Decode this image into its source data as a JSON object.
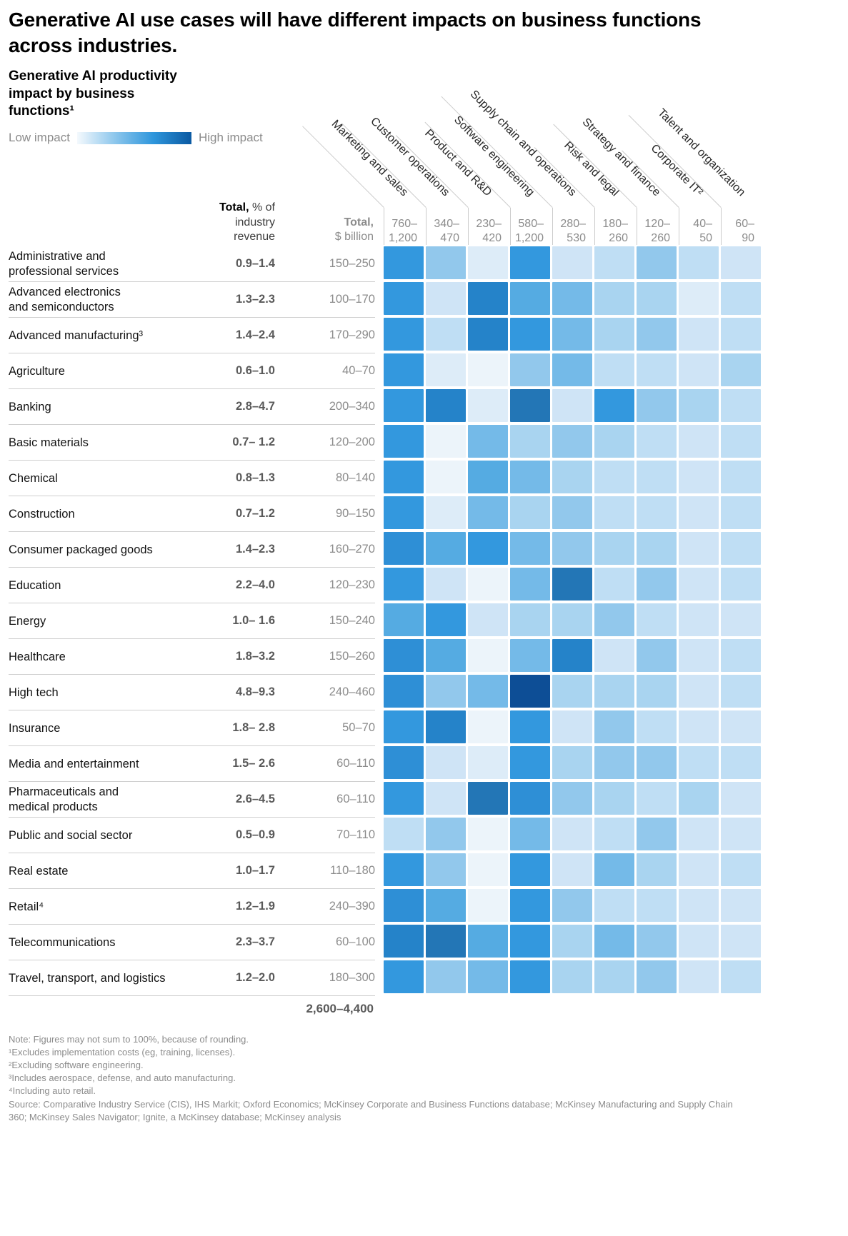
{
  "title": "Generative AI use cases will have different impacts on business functions across industries.",
  "chart": {
    "subtitle": "Generative AI productivity impact by business functions¹",
    "legend": {
      "low": "Low impact",
      "high": "High impact",
      "gradient": [
        "#f4f9fd",
        "#8cc6ec",
        "#2e96dc",
        "#0b59a2"
      ]
    },
    "headers": {
      "pct_bold": "Total,",
      "pct_rest": " % of industry revenue",
      "usd_bold": "Total,",
      "usd_rest": "$ billion"
    }
  },
  "chart_data": {
    "type": "heatmap",
    "columns": [
      "Marketing and sales",
      "Customer operations",
      "Product and R&D",
      "Software engineering",
      "Supply chain and operations",
      "Risk and legal",
      "Strategy and finance",
      "Corporate IT²",
      "Talent and organization"
    ],
    "column_totals_usd_billion": [
      "760–\n1,200",
      "340–\n470",
      "230–\n420",
      "580–\n1,200",
      "280–\n530",
      "180–\n260",
      "120–\n260",
      "40–\n50",
      "60–\n90"
    ],
    "palette_low_to_high": [
      "#ecf4fa",
      "#ddecf8",
      "#cfe4f6",
      "#bfdef4",
      "#a9d4f0",
      "#92c8ec",
      "#74bae8",
      "#55abe2",
      "#3398de",
      "#2e8fd6",
      "#2583c9",
      "#2376b6",
      "#0d4e96"
    ],
    "rows": [
      {
        "industry": "Administrative and\nprofessional services",
        "pct_of_industry_revenue": "0.9–1.4",
        "total_usd_billion": "150–250",
        "impact_levels": [
          8,
          5,
          1,
          8,
          2,
          3,
          5,
          3,
          2
        ]
      },
      {
        "industry": "Advanced electronics\nand semiconductors",
        "pct_of_industry_revenue": "1.3–2.3",
        "total_usd_billion": "100–170",
        "impact_levels": [
          8,
          2,
          10,
          7,
          6,
          4,
          4,
          1,
          3
        ]
      },
      {
        "industry": "Advanced manufacturing³",
        "pct_of_industry_revenue": "1.4–2.4",
        "total_usd_billion": "170–290",
        "impact_levels": [
          8,
          3,
          10,
          8,
          6,
          4,
          5,
          2,
          3
        ]
      },
      {
        "industry": "Agriculture",
        "pct_of_industry_revenue": "0.6–1.0",
        "total_usd_billion": "40–70",
        "impact_levels": [
          8,
          1,
          0,
          5,
          6,
          3,
          3,
          2,
          4
        ]
      },
      {
        "industry": "Banking",
        "pct_of_industry_revenue": "2.8–4.7",
        "total_usd_billion": "200–340",
        "impact_levels": [
          8,
          10,
          1,
          11,
          2,
          8,
          5,
          4,
          3
        ]
      },
      {
        "industry": "Basic materials",
        "pct_of_industry_revenue": "0.7– 1.2",
        "total_usd_billion": "120–200",
        "impact_levels": [
          8,
          0,
          6,
          4,
          5,
          4,
          3,
          2,
          3
        ]
      },
      {
        "industry": "Chemical",
        "pct_of_industry_revenue": "0.8–1.3",
        "total_usd_billion": "80–140",
        "impact_levels": [
          8,
          0,
          7,
          6,
          4,
          3,
          3,
          2,
          3
        ]
      },
      {
        "industry": "Construction",
        "pct_of_industry_revenue": "0.7–1.2",
        "total_usd_billion": "90–150",
        "impact_levels": [
          8,
          1,
          6,
          4,
          5,
          3,
          3,
          2,
          3
        ]
      },
      {
        "industry": "Consumer packaged goods",
        "pct_of_industry_revenue": "1.4–2.3",
        "total_usd_billion": "160–270",
        "impact_levels": [
          9,
          7,
          8,
          6,
          5,
          4,
          4,
          2,
          3
        ]
      },
      {
        "industry": "Education",
        "pct_of_industry_revenue": "2.2–4.0",
        "total_usd_billion": "120–230",
        "impact_levels": [
          8,
          2,
          0,
          6,
          11,
          3,
          5,
          2,
          3
        ]
      },
      {
        "industry": "Energy",
        "pct_of_industry_revenue": "1.0– 1.6",
        "total_usd_billion": "150–240",
        "impact_levels": [
          7,
          8,
          2,
          4,
          4,
          5,
          3,
          2,
          2
        ]
      },
      {
        "industry": "Healthcare",
        "pct_of_industry_revenue": "1.8–3.2",
        "total_usd_billion": "150–260",
        "impact_levels": [
          9,
          7,
          0,
          6,
          10,
          2,
          5,
          2,
          3
        ]
      },
      {
        "industry": "High tech",
        "pct_of_industry_revenue": "4.8–9.3",
        "total_usd_billion": "240–460",
        "impact_levels": [
          9,
          5,
          6,
          12,
          4,
          4,
          4,
          2,
          3
        ]
      },
      {
        "industry": "Insurance",
        "pct_of_industry_revenue": "1.8– 2.8",
        "total_usd_billion": "50–70",
        "impact_levels": [
          8,
          10,
          0,
          8,
          2,
          5,
          3,
          2,
          2
        ]
      },
      {
        "industry": "Media and entertainment",
        "pct_of_industry_revenue": "1.5– 2.6",
        "total_usd_billion": "60–110",
        "impact_levels": [
          9,
          2,
          1,
          8,
          4,
          5,
          5,
          3,
          3
        ]
      },
      {
        "industry": "Pharmaceuticals and\nmedical products",
        "pct_of_industry_revenue": "2.6–4.5",
        "total_usd_billion": "60–110",
        "impact_levels": [
          8,
          2,
          11,
          9,
          5,
          4,
          3,
          4,
          2
        ]
      },
      {
        "industry": "Public and social sector",
        "pct_of_industry_revenue": "0.5–0.9",
        "total_usd_billion": "70–110",
        "impact_levels": [
          3,
          5,
          0,
          6,
          2,
          3,
          5,
          2,
          2
        ]
      },
      {
        "industry": "Real estate",
        "pct_of_industry_revenue": "1.0–1.7",
        "total_usd_billion": "110–180",
        "impact_levels": [
          8,
          5,
          0,
          8,
          2,
          6,
          4,
          2,
          3
        ]
      },
      {
        "industry": "Retail⁴",
        "pct_of_industry_revenue": "1.2–1.9",
        "total_usd_billion": "240–390",
        "impact_levels": [
          9,
          7,
          0,
          8,
          5,
          3,
          3,
          2,
          2
        ]
      },
      {
        "industry": "Telecommunications",
        "pct_of_industry_revenue": "2.3–3.7",
        "total_usd_billion": "60–100",
        "impact_levels": [
          10,
          11,
          7,
          8,
          4,
          6,
          5,
          2,
          2
        ]
      },
      {
        "industry": "Travel, transport, and logistics",
        "pct_of_industry_revenue": "1.2–2.0",
        "total_usd_billion": "180–300",
        "impact_levels": [
          8,
          5,
          6,
          8,
          4,
          4,
          5,
          2,
          3
        ]
      }
    ],
    "grand_total_usd_billion": "2,600–4,400"
  },
  "footnotes": [
    "Note: Figures may not sum to 100%, because of rounding.",
    "¹Excludes implementation costs (eg, training, licenses).",
    "²Excluding software engineering.",
    "³Includes aerospace, defense, and auto manufacturing.",
    "⁴Including auto retail."
  ],
  "source": "Source: Comparative Industry Service (CIS), IHS Markit; Oxford Economics; McKinsey Corporate and Business Functions database; McKinsey Manufacturing and Supply Chain 360; McKinsey Sales Navigator; Ignite, a McKinsey database; McKinsey analysis"
}
